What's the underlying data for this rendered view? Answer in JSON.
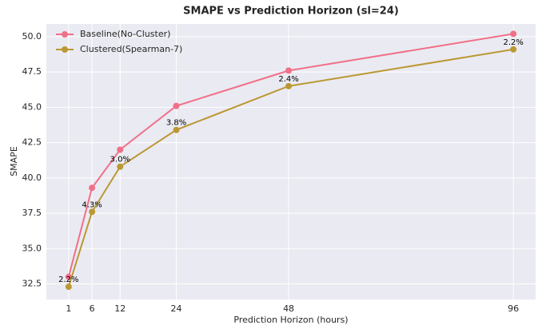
{
  "chart_data": {
    "type": "line",
    "title": "SMAPE vs Prediction Horizon (sl=24)",
    "xlabel": "Prediction Horizon (hours)",
    "ylabel": "SMAPE",
    "x": [
      1,
      6,
      12,
      24,
      48,
      96
    ],
    "series": [
      {
        "name": "Baseline(No-Cluster)",
        "color": "#f07088",
        "values": [
          33.0,
          39.3,
          42.0,
          45.1,
          47.6,
          50.2
        ]
      },
      {
        "name": "Clustered(Spearman-7)",
        "color": "#bb9832",
        "values": [
          32.3,
          37.6,
          40.8,
          43.4,
          46.5,
          49.1
        ]
      }
    ],
    "annotations": [
      "2.2%",
      "4.3%",
      "3.0%",
      "3.8%",
      "2.4%",
      "2.2%"
    ],
    "xlim": [
      -3.75,
      100.75
    ],
    "xticks": [
      1,
      6,
      12,
      24,
      48,
      96
    ],
    "ylim": [
      31.4,
      50.9
    ],
    "yticks": [
      32.5,
      {
        "value": 35,
        "label": "35.0"
      },
      37.5,
      {
        "value": 40,
        "label": "40.0"
      },
      42.5,
      {
        "value": 45,
        "label": "45.0"
      },
      47.5,
      {
        "value": 50,
        "label": "50.0"
      }
    ],
    "grid": true,
    "legend": "upper left"
  }
}
